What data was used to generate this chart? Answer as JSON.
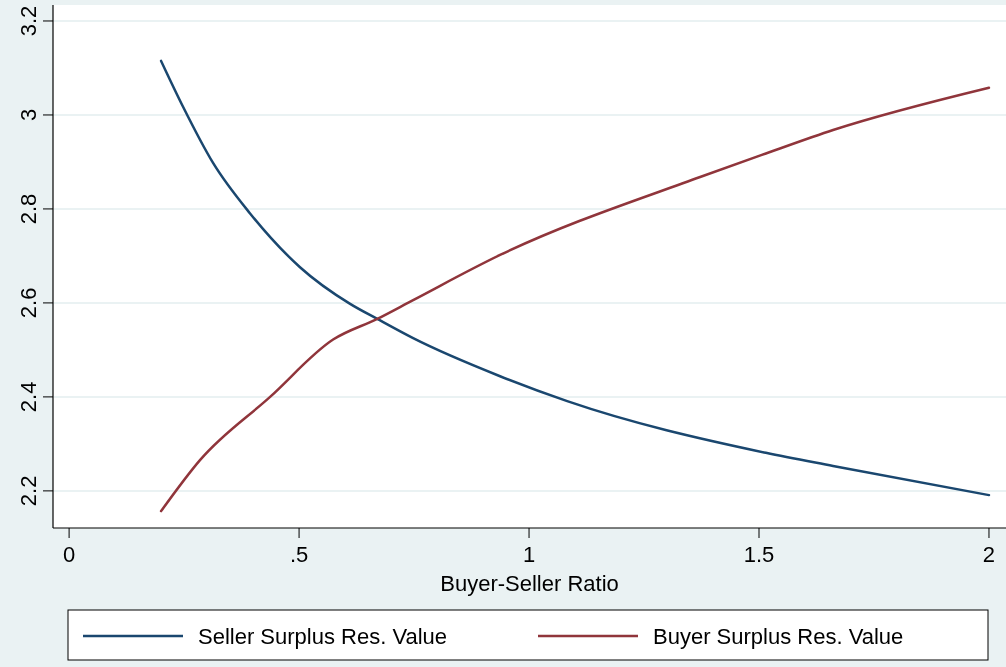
{
  "chart_data": {
    "type": "line",
    "xlabel": "Buyer-Seller Ratio",
    "xlim": [
      -0.035,
      2.037
    ],
    "xticks": [
      0,
      {
        "value": 0.5,
        "label": ".5"
      },
      1,
      1.5,
      2
    ],
    "ylim": [
      2.121,
      3.234
    ],
    "yticks": [
      2.2,
      2.4,
      2.6,
      2.8,
      3,
      3.2
    ],
    "grid": "y",
    "legend": "bottom",
    "line_style": "solid",
    "marker": "none",
    "series": [
      {
        "name": "Seller Surplus Res. Value",
        "color": "#1a476f",
        "x": [
          0.2,
          0.248,
          0.313,
          0.393,
          0.502,
          0.611,
          0.67,
          0.748,
          0.937,
          1.083,
          1.515,
          1.661,
          2
        ],
        "values": [
          3.115,
          3.017,
          2.898,
          2.791,
          2.676,
          2.598,
          2.566,
          2.525,
          2.444,
          2.391,
          2.281,
          2.253,
          2.191
        ]
      },
      {
        "name": "Buyer Surplus Res. Value",
        "color": "#90353b",
        "x": [
          0.2,
          0.285,
          0.437,
          0.574,
          0.67,
          0.748,
          0.937,
          1.372,
          1.515,
          1.661,
          2
        ],
        "values": [
          2.157,
          2.266,
          2.4,
          2.522,
          2.566,
          2.606,
          2.702,
          2.868,
          2.918,
          2.968,
          3.058
        ]
      }
    ]
  }
}
